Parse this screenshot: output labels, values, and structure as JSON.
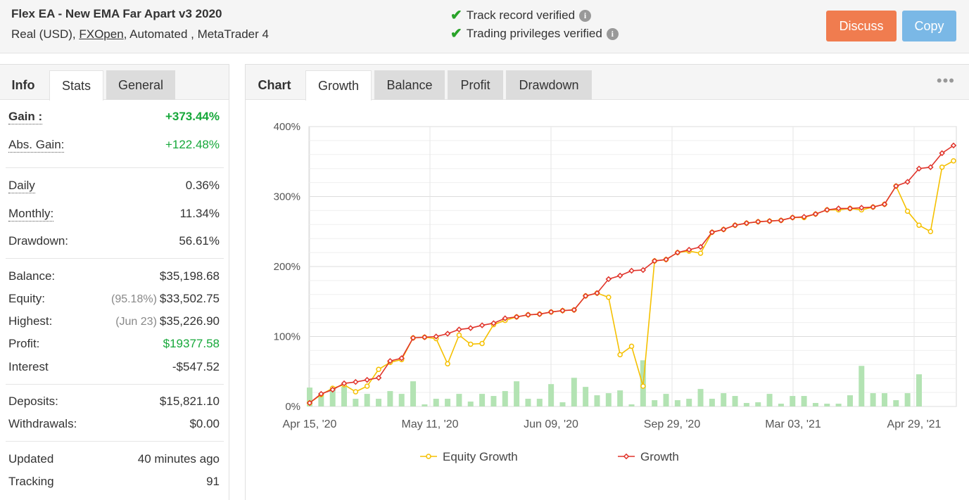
{
  "header": {
    "title": "Flex EA - New EMA Far Apart v3 2020",
    "account_type": "Real (USD),",
    "broker": "FXOpen",
    "rest": ", Automated , MetaTrader 4",
    "verified_track": "Track record verified",
    "verified_trading": "Trading privileges verified",
    "discuss_label": "Discuss",
    "copy_label": "Copy",
    "info_glyph": "i",
    "check_glyph": "✔"
  },
  "left_tabs": {
    "info": "Info",
    "stats": "Stats",
    "general": "General"
  },
  "stats": {
    "gain": {
      "label": "Gain :",
      "value": "+373.44%"
    },
    "abs_gain": {
      "label": "Abs. Gain:",
      "value": "+122.48%"
    },
    "daily": {
      "label": "Daily",
      "value": "0.36%"
    },
    "monthly": {
      "label": "Monthly:",
      "value": "11.34%"
    },
    "drawdown": {
      "label": "Drawdown:",
      "value": "56.61%"
    },
    "balance": {
      "label": "Balance:",
      "value": "$35,198.68"
    },
    "equity": {
      "label": "Equity:",
      "note": "(95.18%)",
      "value": "$33,502.75"
    },
    "highest": {
      "label": "Highest:",
      "note": "(Jun 23)",
      "value": "$35,226.90"
    },
    "profit": {
      "label": "Profit:",
      "value": "$19377.58"
    },
    "interest": {
      "label": "Interest",
      "value": "-$547.52"
    },
    "deposits": {
      "label": "Deposits:",
      "value": "$15,821.10"
    },
    "withdrawals": {
      "label": "Withdrawals:",
      "value": "$0.00"
    },
    "updated": {
      "label": "Updated",
      "value": "40 minutes ago"
    },
    "tracking": {
      "label": "Tracking",
      "value": "91"
    }
  },
  "right_tabs": {
    "chart": "Chart",
    "growth": "Growth",
    "balance": "Balance",
    "profit": "Profit",
    "drawdown": "Drawdown",
    "more": "•••"
  },
  "colors": {
    "growth": "#e0342b",
    "equity": "#f5c000",
    "bars": "#b3e3b3",
    "green": "#16a83a"
  },
  "chart_data": {
    "type": "line",
    "ylim": [
      0,
      400
    ],
    "yticks": [
      "0%",
      "100%",
      "200%",
      "300%",
      "400%"
    ],
    "ytick_values": [
      0,
      100,
      200,
      300,
      400
    ],
    "xticks": [
      "Apr 15, '20",
      "May 11, '20",
      "Jun 09, '20",
      "Sep 29, '20",
      "Mar 03, '21",
      "Apr 29, '21"
    ],
    "series": [
      {
        "name": "Growth",
        "values": [
          5,
          18,
          24,
          33,
          35,
          38,
          41,
          65,
          69,
          98,
          99,
          100,
          104,
          110,
          112,
          116,
          119,
          126,
          128,
          131,
          132,
          135,
          137,
          138,
          158,
          162,
          182,
          187,
          194,
          195,
          208,
          210,
          220,
          224,
          228,
          249,
          253,
          259,
          262,
          264,
          265,
          266,
          270,
          271,
          275,
          281,
          283,
          283,
          284,
          285,
          289,
          315,
          321,
          340,
          342,
          362,
          373
        ]
      },
      {
        "name": "Equity Growth",
        "values": [
          5,
          17,
          26,
          31,
          21,
          29,
          53,
          63,
          67,
          98,
          99,
          97,
          61,
          102,
          89,
          90,
          117,
          123,
          128,
          131,
          132,
          135,
          137,
          138,
          158,
          162,
          156,
          74,
          86,
          29,
          208,
          210,
          220,
          222,
          219,
          249,
          253,
          259,
          262,
          264,
          265,
          266,
          270,
          270,
          275,
          281,
          281,
          283,
          281,
          285,
          289,
          315,
          279,
          259,
          250,
          342,
          351
        ]
      }
    ],
    "bars": [
      27,
      19,
      27,
      28,
      11,
      18,
      11,
      22,
      18,
      36,
      3,
      11,
      11,
      18,
      7,
      18,
      15,
      22,
      36,
      11,
      11,
      32,
      6,
      41,
      28,
      16,
      19,
      23,
      3,
      66,
      9,
      18,
      9,
      11,
      25,
      11,
      19,
      15,
      5,
      6,
      18,
      4,
      15,
      15,
      5,
      4,
      4,
      16,
      58,
      19,
      19,
      9,
      19,
      46,
      0,
      0,
      0
    ],
    "legend": [
      "Equity Growth",
      "Growth"
    ],
    "legend_position": "bottom"
  }
}
